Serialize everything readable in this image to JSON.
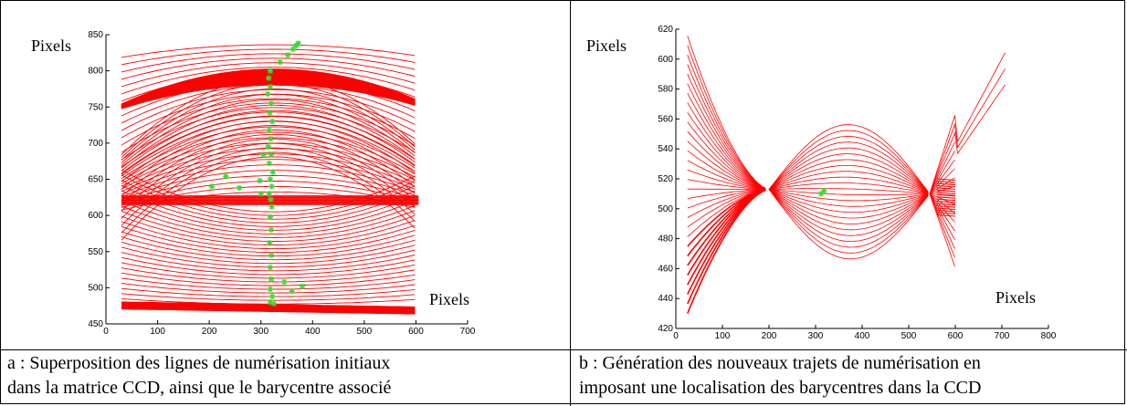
{
  "chart_data": [
    {
      "type": "line",
      "panel": "a",
      "x_unit_label": "Pixels",
      "y_unit_label": "Pixels",
      "xlim": [
        0,
        700
      ],
      "ylim": [
        450,
        850
      ],
      "x_ticks": [
        0,
        100,
        200,
        300,
        400,
        500,
        600,
        700
      ],
      "y_ticks": [
        450,
        500,
        550,
        600,
        650,
        700,
        750,
        800,
        850
      ],
      "line_color": "#ff0000",
      "centroid_color": "#33dd33",
      "lines": {
        "x_range": [
          30,
          605
        ],
        "top_stack_edges": [
          838,
          758
        ],
        "top_arc_peak": [
          325,
          802
        ],
        "mid_band_y": [
          615,
          628
        ],
        "bottom_stack_edges": [
          480,
          470
        ]
      },
      "centroids": [
        [
          372,
          838
        ],
        [
          368,
          835
        ],
        [
          362,
          830
        ],
        [
          352,
          822
        ],
        [
          337,
          812
        ],
        [
          318,
          800
        ],
        [
          315,
          790
        ],
        [
          318,
          778
        ],
        [
          313,
          768
        ],
        [
          320,
          755
        ],
        [
          317,
          742
        ],
        [
          322,
          730
        ],
        [
          316,
          718
        ],
        [
          319,
          706
        ],
        [
          314,
          695
        ],
        [
          320,
          684
        ],
        [
          316,
          672
        ],
        [
          323,
          660
        ],
        [
          318,
          650
        ],
        [
          321,
          640
        ],
        [
          316,
          630
        ],
        [
          319,
          622
        ],
        [
          321,
          612
        ],
        [
          318,
          598
        ],
        [
          320,
          580
        ],
        [
          317,
          562
        ],
        [
          320,
          545
        ],
        [
          318,
          528
        ],
        [
          320,
          512
        ],
        [
          318,
          498
        ],
        [
          322,
          488
        ],
        [
          318,
          480
        ],
        [
          325,
          478
        ],
        [
          345,
          508
        ],
        [
          360,
          495
        ],
        [
          380,
          502
        ],
        [
          232,
          654
        ],
        [
          205,
          640
        ],
        [
          258,
          638
        ],
        [
          300,
          630
        ],
        [
          305,
          684
        ],
        [
          298,
          648
        ]
      ]
    },
    {
      "type": "line",
      "panel": "b",
      "x_unit_label": "Pixels",
      "y_unit_label": "Pixels",
      "xlim": [
        0,
        800
      ],
      "ylim": [
        420,
        620
      ],
      "x_ticks": [
        0,
        100,
        200,
        300,
        400,
        500,
        600,
        700,
        800
      ],
      "y_ticks": [
        420,
        440,
        460,
        480,
        500,
        520,
        540,
        560,
        580,
        600,
        620
      ],
      "line_color": "#ff0000",
      "centroid_color": "#33dd33",
      "crossing_points": [
        [
          200,
          513
        ],
        [
          545,
          510
        ]
      ],
      "centroids": [
        [
          318,
          512
        ],
        [
          312,
          510
        ]
      ]
    }
  ],
  "captions": {
    "a": [
      "a : Superposition des lignes de numérisation initiaux",
      "dans la matrice CCD, ainsi que le barycentre associé"
    ],
    "b": [
      "b : Génération des nouveaux trajets de numérisation en",
      "imposant une localisation des barycentres dans la CCD"
    ]
  }
}
